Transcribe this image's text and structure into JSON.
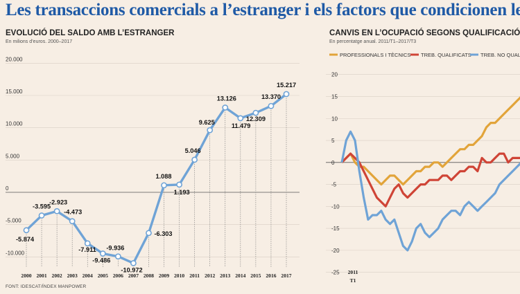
{
  "title": "Les transaccions comercials a l’estranger i els factors que condicionen les seves variacions",
  "source": "FONT: IDESCAT/ÍNDEX MANPOWER",
  "colors": {
    "title": "#1f5aa6",
    "saldo_line": "#6fa3d6",
    "professionals": "#e2a43a",
    "qualificats": "#cf4436",
    "no_qualificats": "#6fa3d6"
  },
  "chart_data": [
    {
      "type": "line",
      "title": "EVOLUCIÓ DEL SALDO AMB L’ESTRANGER",
      "subtitle": "En milions d’euros. 2000–2017",
      "ylim": [
        -12000,
        21000
      ],
      "yticks": [
        "20.000",
        "15.000",
        "10.000",
        "5.000",
        "0",
        "-5.000",
        "-10.000"
      ],
      "ytick_values": [
        20000,
        15000,
        10000,
        5000,
        0,
        -5000,
        -10000
      ],
      "categories": [
        "2000",
        "2001",
        "2002",
        "2003",
        "2004",
        "2005",
        "2006",
        "2007",
        "2008",
        "2009",
        "2010",
        "2011",
        "2012",
        "2013",
        "2014",
        "2015",
        "2016",
        "2017"
      ],
      "values": [
        -5874,
        -3595,
        -2923,
        -4473,
        -7911,
        -9486,
        -9936,
        -10972,
        -6303,
        1088,
        1193,
        5046,
        9625,
        13126,
        11479,
        12309,
        13370,
        15217
      ],
      "labels": [
        "-5.874",
        "-3.595",
        "-2.923",
        "-4.473",
        "-7.911",
        "-9.486",
        "-9.936",
        "-10.972",
        "-6.303",
        "1.088",
        "1.193",
        "5.046",
        "9.625",
        "13.126",
        "11.479",
        "12.309",
        "13.370",
        "15.217"
      ]
    },
    {
      "type": "line",
      "title": "CANVIS EN L’OCUPACIÓ SEGONS QUALIFICACIÓ",
      "subtitle": "En percentatge anual. 2011/T1–2017/T3",
      "ylim": [
        -26,
        22
      ],
      "yticks": [
        "20",
        "15",
        "10",
        "5",
        "0",
        "-5",
        "-10",
        "-15",
        "-20",
        "-25"
      ],
      "ytick_values": [
        20,
        15,
        10,
        5,
        0,
        -5,
        -10,
        -15,
        -20,
        -25
      ],
      "x_label_year": "2011",
      "x_label_quarter": "T1",
      "series": [
        {
          "name": "PROFESSIONALS I TÈCNICS",
          "color": "#e2a43a",
          "values": [
            0,
            1,
            2,
            0,
            -1,
            -1,
            -2,
            -3,
            -4,
            -5,
            -4,
            -3,
            -3,
            -4,
            -5,
            -4,
            -3,
            -2,
            -2,
            -1,
            -1,
            0,
            0,
            -1,
            0,
            1,
            2,
            3,
            3,
            4,
            4,
            5,
            6,
            8,
            9,
            9,
            10,
            11,
            12,
            13,
            14,
            15
          ]
        },
        {
          "name": "TREB. QUALIFICATS",
          "color": "#cf4436",
          "values": [
            0,
            1,
            2,
            1,
            0,
            -2,
            -4,
            -6,
            -8,
            -9,
            -10,
            -8,
            -6,
            -5,
            -7,
            -8,
            -7,
            -6,
            -5,
            -5,
            -4,
            -4,
            -4,
            -3,
            -3,
            -4,
            -3,
            -2,
            -2,
            -1,
            -1,
            -2,
            1,
            0,
            0,
            1,
            2,
            2,
            0,
            1,
            1,
            1
          ]
        },
        {
          "name": "TREB. NO QUALIFICATS",
          "color": "#6fa3d6",
          "values": [
            0,
            5,
            7,
            5,
            -2,
            -8,
            -13,
            -12,
            -12,
            -11,
            -13,
            -14,
            -13,
            -16,
            -19,
            -20,
            -18,
            -15,
            -14,
            -16,
            -17,
            -16,
            -15,
            -13,
            -12,
            -11,
            -11,
            -12,
            -10,
            -9,
            -10,
            -11,
            -10,
            -9,
            -8,
            -7,
            -5,
            -4,
            -3,
            -2,
            -1,
            0
          ]
        }
      ]
    }
  ]
}
